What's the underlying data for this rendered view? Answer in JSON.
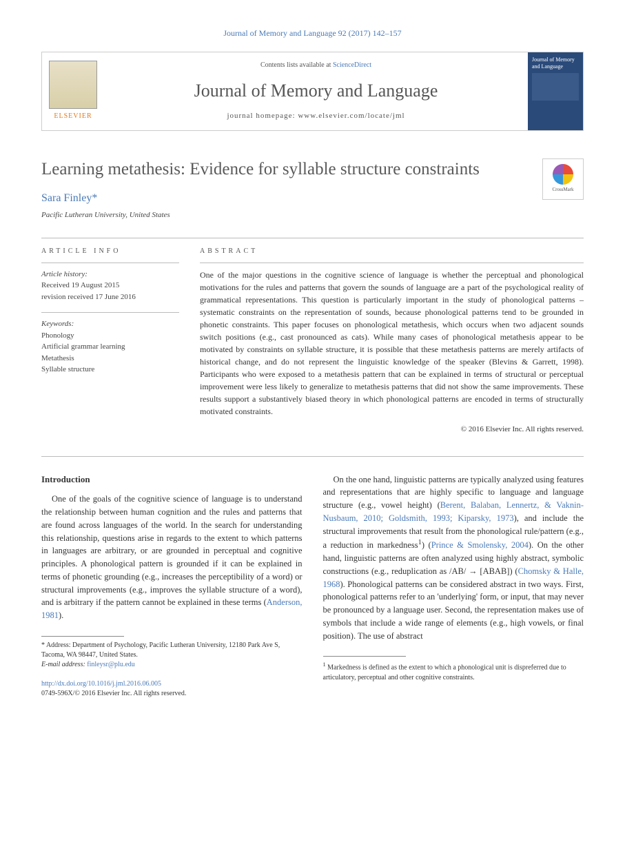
{
  "header": {
    "citation": "Journal of Memory and Language 92 (2017) 142–157",
    "contents_prefix": "Contents lists available at ",
    "contents_link": "ScienceDirect",
    "journal_title": "Journal of Memory and Language",
    "homepage_prefix": "journal homepage: ",
    "homepage_url": "www.elsevier.com/locate/jml",
    "elsevier_label": "ELSEVIER",
    "cover_label": "Journal of Memory and Language"
  },
  "article": {
    "title": "Learning metathesis: Evidence for syllable structure constraints",
    "crossmark_label": "CrossMark",
    "author": "Sara Finley",
    "author_mark": "*",
    "affiliation": "Pacific Lutheran University, United States"
  },
  "info": {
    "label": "ARTICLE INFO",
    "history_label": "Article history:",
    "received": "Received 19 August 2015",
    "revised": "revision received 17 June 2016",
    "keywords_label": "Keywords:",
    "keywords": [
      "Phonology",
      "Artificial grammar learning",
      "Metathesis",
      "Syllable structure"
    ]
  },
  "abstract": {
    "label": "ABSTRACT",
    "text": "One of the major questions in the cognitive science of language is whether the perceptual and phonological motivations for the rules and patterns that govern the sounds of language are a part of the psychological reality of grammatical representations. This question is particularly important in the study of phonological patterns – systematic constraints on the representation of sounds, because phonological patterns tend to be grounded in phonetic constraints. This paper focuses on phonological metathesis, which occurs when two adjacent sounds switch positions (e.g., cast pronounced as cats). While many cases of phonological metathesis appear to be motivated by constraints on syllable structure, it is possible that these metathesis patterns are merely artifacts of historical change, and do not represent the linguistic knowledge of the speaker (Blevins & Garrett, 1998). Participants who were exposed to a metathesis pattern that can be explained in terms of structural or perceptual improvement were less likely to generalize to metathesis patterns that did not show the same improvements. These results support a substantively biased theory in which phonological patterns are encoded in terms of structurally motivated constraints.",
    "copyright": "© 2016 Elsevier Inc. All rights reserved."
  },
  "body": {
    "intro_heading": "Introduction",
    "p1": "One of the goals of the cognitive science of language is to understand the relationship between human cognition and the rules and patterns that are found across languages of the world. In the search for understanding this relationship, questions arise in regards to the extent to which patterns in languages are arbitrary, or are grounded in perceptual and cognitive principles. A phonological pattern is grounded if it can be explained in terms of phonetic grounding (e.g., increases the perceptibility of a word) or structural improvements (e.g., improves the syllable structure of a word), and is arbitrary if the pattern cannot be explained in these terms (",
    "p1_cite": "Anderson, 1981",
    "p1_end": ").",
    "p2a": "On the one hand, linguistic patterns are typically analyzed using features and representations that are highly specific to language and language structure (e.g., vowel height) (",
    "p2_cite1": "Berent, Balaban, Lennertz, & Vaknin-Nusbaum, 2010; Goldsmith, 1993; Kiparsky, 1973",
    "p2b": "), and include the structural improvements that result from the phonological rule/pattern (e.g., a reduction in markedness",
    "p2_sup": "1",
    "p2c": ") (",
    "p2_cite2": "Prince & Smolensky, 2004",
    "p2d": "). On the other hand, linguistic patterns are often analyzed using highly abstract, symbolic constructions (e.g., reduplication as /AB/ → [ABAB]) (",
    "p2_cite3": "Chomsky & Halle, 1968",
    "p2e": "). Phonological patterns can be considered abstract in two ways. First, phonological patterns refer to an 'underlying' form, or input, that may never be pronounced by a language user. Second, the representation makes use of symbols that include a wide range of elements (e.g., high vowels, or final position). The use of abstract"
  },
  "footnotes": {
    "corr_label": "* Address: ",
    "corr_addr": "Department of Psychology, Pacific Lutheran University, 12180 Park Ave S, Tacoma, WA 98447, United States.",
    "email_label": "E-mail address: ",
    "email": "finleysr@plu.edu",
    "fn1_num": "1",
    "fn1_text": " Markedness is defined as the extent to which a phonological unit is dispreferred due to articulatory, perceptual and other cognitive constraints.",
    "doi": "http://dx.doi.org/10.1016/j.jml.2016.06.005",
    "issn": "0749-596X/© 2016 Elsevier Inc. All rights reserved."
  },
  "colors": {
    "link": "#4a7ab8",
    "text": "#333333",
    "rule": "#bbbbbb",
    "elsevier_orange": "#e67817"
  }
}
